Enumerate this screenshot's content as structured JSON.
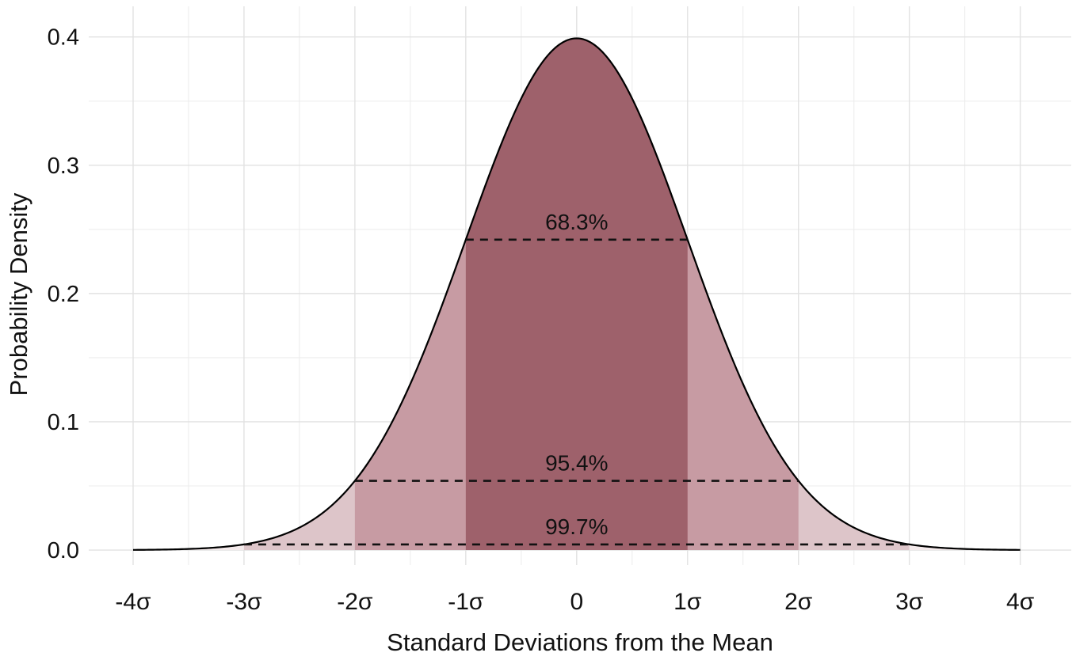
{
  "figure": {
    "background_color": "#ffffff"
  },
  "chart_data": {
    "type": "area",
    "title": "",
    "xlabel": "Standard Deviations from the Mean",
    "ylabel": "Probability Density",
    "grid": true,
    "legend": "none",
    "xlim": [
      -4.4,
      4.46
    ],
    "ylim": [
      -0.0117,
      0.4239
    ],
    "x_ticks": [
      {
        "value": -4,
        "label": "-4σ"
      },
      {
        "value": -3,
        "label": "-3σ"
      },
      {
        "value": -2,
        "label": "-2σ"
      },
      {
        "value": -1,
        "label": "-1σ"
      },
      {
        "value": 0,
        "label": "0"
      },
      {
        "value": 1,
        "label": "1σ"
      },
      {
        "value": 2,
        "label": "2σ"
      },
      {
        "value": 3,
        "label": "3σ"
      },
      {
        "value": 4,
        "label": "4σ"
      }
    ],
    "y_ticks": [
      {
        "value": 0.0,
        "label": "0.0"
      },
      {
        "value": 0.1,
        "label": "0.1"
      },
      {
        "value": 0.2,
        "label": "0.2"
      },
      {
        "value": 0.3,
        "label": "0.3"
      },
      {
        "value": 0.4,
        "label": "0.4"
      }
    ],
    "curve": {
      "distribution": "standard_normal",
      "mean": 0,
      "sd": 1,
      "x_range": [
        -4,
        4
      ],
      "peak_density": 0.3989,
      "stroke_color": "#000000",
      "stroke_width": 2.2
    },
    "bands": [
      {
        "sigma_range": [
          -1,
          1
        ],
        "coverage_label": "68.3%",
        "coverage_pct": 68.3,
        "dash_line_density": 0.242,
        "fill_color": "#9e616b"
      },
      {
        "sigma_range": [
          -2,
          2
        ],
        "coverage_label": "95.4%",
        "coverage_pct": 95.4,
        "dash_line_density": 0.054,
        "fill_color": "#c79ba3"
      },
      {
        "sigma_range": [
          -3,
          3
        ],
        "coverage_label": "99.7%",
        "coverage_pct": 99.7,
        "dash_line_density": 0.0044,
        "fill_color": "#ddc5c9"
      },
      {
        "sigma_range": [
          -4,
          4
        ],
        "coverage_label": null,
        "coverage_pct": null,
        "dash_line_density": null,
        "fill_color": "#f4eaeb"
      }
    ],
    "annotation_style": {
      "dash_color": "#111111",
      "dash_width": 2.6,
      "label_color": "#111111"
    },
    "grid_style": {
      "major_color": "#e2e2e2",
      "minor_color": "#ededed"
    },
    "text_color": "#121212"
  }
}
